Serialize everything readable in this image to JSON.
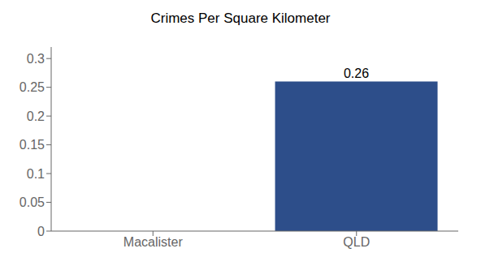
{
  "chart_data": {
    "type": "bar",
    "title": "Crimes Per Square Kilometer",
    "categories": [
      "Macalister",
      "QLD"
    ],
    "values": [
      0,
      0.26
    ],
    "color": "#2d4e8a",
    "ylim": [
      0,
      0.32
    ],
    "yticks": [
      0,
      0.05,
      0.1,
      0.15,
      0.2,
      0.25,
      0.3
    ],
    "grid": false,
    "data_labels": true
  }
}
